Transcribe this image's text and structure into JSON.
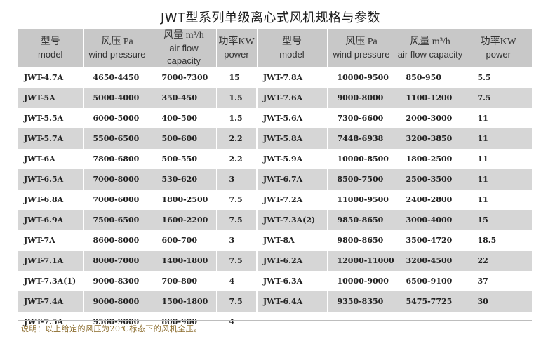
{
  "title": "JWT型系列单级离心式风机规格与参数",
  "headers": [
    {
      "zh": "型号",
      "en": "model"
    },
    {
      "zh": "风压 Pa",
      "en": "wind pressure"
    },
    {
      "zh": "风量 m³/h",
      "en": "air flow capacity"
    },
    {
      "zh": "功率KW",
      "en": "power"
    },
    {
      "zh": "型号",
      "en": "model"
    },
    {
      "zh": "风压 Pa",
      "en": "wind pressure"
    },
    {
      "zh": "风量 m³/h",
      "en": "air flow capacity"
    },
    {
      "zh": "功率KW",
      "en": "power"
    }
  ],
  "rows": [
    [
      "JWT-4.7A",
      "4650-4450",
      "7000-7300",
      "15",
      "JWT-7.8A",
      "10000-9500",
      "850-950",
      "5.5"
    ],
    [
      "JWT-5A",
      "5000-4000",
      "350-450",
      "1.5",
      "JWT-7.6A",
      "9000-8000",
      "1100-1200",
      "7.5"
    ],
    [
      "JWT-5.5A",
      "6000-5000",
      "400-500",
      "1.5",
      "JWT-5.6A",
      "7300-6600",
      "2000-3000",
      "11"
    ],
    [
      "JWT-5.7A",
      "5500-6500",
      "500-600",
      "2.2",
      "JWT-5.8A",
      "7448-6938",
      "3200-3850",
      "11"
    ],
    [
      "JWT-6A",
      "7800-6800",
      "500-550",
      "2.2",
      "JWT-5.9A",
      "10000-8500",
      "1800-2500",
      "11"
    ],
    [
      "JWT-6.5A",
      "7000-8000",
      "530-620",
      "3",
      "JWT-6.7A",
      "8500-7500",
      "2500-3500",
      "11"
    ],
    [
      "JWT-6.8A",
      "7000-6000",
      "1800-2500",
      "7.5",
      "JWT-7.2A",
      "11000-9500",
      "2400-2800",
      "11"
    ],
    [
      "JWT-6.9A",
      "7500-6500",
      "1600-2200",
      "7.5",
      "JWT-7.3A(2)",
      "9850-8650",
      "3000-4000",
      "15"
    ],
    [
      "JWT-7A",
      "8600-8000",
      "600-700",
      "3",
      "JWT-8A",
      "9800-8650",
      "3500-4720",
      "18.5"
    ],
    [
      "JWT-7.1A",
      "8000-7000",
      "1400-1800",
      "7.5",
      "JWT-6.2A",
      "12000-11000",
      "3200-4500",
      "22"
    ],
    [
      "JWT-7.3A(1)",
      "9000-8300",
      "700-800",
      "4",
      "JWT-6.3A",
      "10000-9000",
      "6500-9100",
      "37"
    ],
    [
      "JWT-7.4A",
      "9000-8000",
      "1500-1800",
      "7.5",
      "JWT-6.4A",
      "9350-8350",
      "5475-7725",
      "30"
    ],
    [
      "JWT-7.5A",
      "9500-9000",
      "800-900",
      "4",
      "",
      "",
      "",
      ""
    ]
  ],
  "note": "说明：以上给定的风压为20℃标态下的风机全压。"
}
